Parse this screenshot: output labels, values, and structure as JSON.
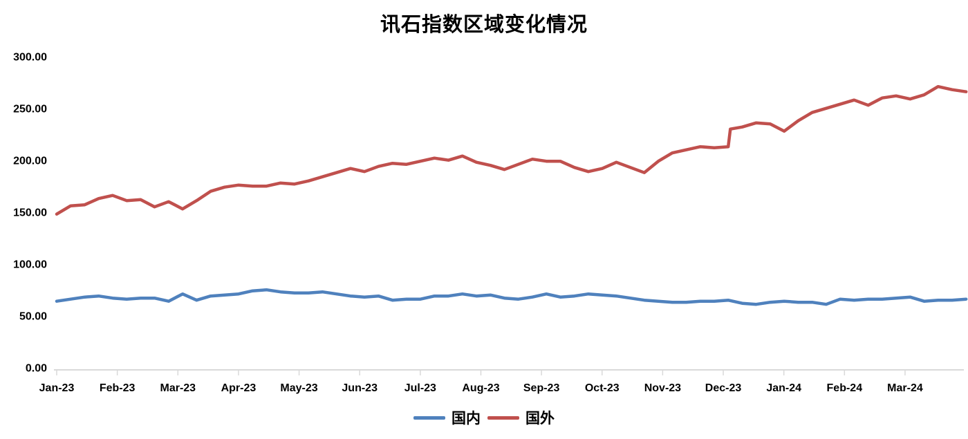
{
  "chart_data": {
    "type": "line",
    "title": "讯石指数区域变化情况",
    "x_axis": {
      "tick_labels": [
        "Jan-23",
        "Feb-23",
        "Mar-23",
        "Apr-23",
        "May-23",
        "Jun-23",
        "Jul-23",
        "Aug-23",
        "Sep-23",
        "Oct-23",
        "Nov-23",
        "Dec-23",
        "Jan-24",
        "Feb-24",
        "Mar-24"
      ],
      "points_per_month": 4.333,
      "description": "weekly index points from Jan-2023 through early Apr-2024"
    },
    "y_axis": {
      "min": 0,
      "max": 300,
      "step": 50,
      "tick_labels": [
        "0.00",
        "50.00",
        "100.00",
        "150.00",
        "200.00",
        "250.00",
        "300.00"
      ]
    },
    "grid": false,
    "legend_position": "bottom-center",
    "series": [
      {
        "name": "国内",
        "color": "#4F81BD",
        "values": [
          64,
          66,
          68,
          69,
          67,
          66,
          67,
          67,
          64,
          71,
          65,
          69,
          70,
          71,
          74,
          75,
          73,
          72,
          72,
          73,
          71,
          69,
          68,
          69,
          65,
          66,
          66,
          69,
          69,
          71,
          69,
          70,
          67,
          66,
          68,
          71,
          68,
          69,
          71,
          70,
          69,
          67,
          65,
          64,
          63,
          63,
          64,
          64,
          65,
          62,
          61,
          63,
          64,
          63,
          63,
          61,
          66,
          65,
          66,
          66,
          67,
          68,
          64,
          65,
          65,
          66
        ]
      },
      {
        "name": "国外",
        "color": "#C0504D",
        "x": [
          0,
          1,
          2,
          3,
          4,
          5,
          6,
          7,
          8,
          9,
          10,
          11,
          12,
          13,
          14,
          15,
          16,
          17,
          18,
          19,
          20,
          21,
          22,
          23,
          24,
          25,
          26,
          27,
          28,
          29,
          30,
          31,
          32,
          33,
          34,
          35,
          36,
          37,
          38,
          39,
          40,
          41,
          42,
          43,
          44,
          45,
          46,
          47,
          48,
          48.15,
          49,
          50,
          51,
          52,
          53,
          54,
          55,
          56,
          57,
          58,
          59,
          60,
          61,
          62,
          63,
          64,
          65
        ],
        "values": [
          148,
          156,
          157,
          163,
          166,
          161,
          162,
          155,
          160,
          153,
          161,
          170,
          174,
          176,
          175,
          175,
          178,
          177,
          180,
          184,
          188,
          192,
          189,
          194,
          197,
          196,
          199,
          202,
          200,
          204,
          198,
          195,
          191,
          196,
          201,
          199,
          199,
          193,
          189,
          192,
          198,
          193,
          188,
          199,
          207,
          210,
          213,
          212,
          213,
          230,
          232,
          236,
          235,
          228,
          238,
          246,
          250,
          254,
          258,
          253,
          260,
          262,
          259,
          263,
          271,
          268,
          266
        ]
      }
    ]
  }
}
